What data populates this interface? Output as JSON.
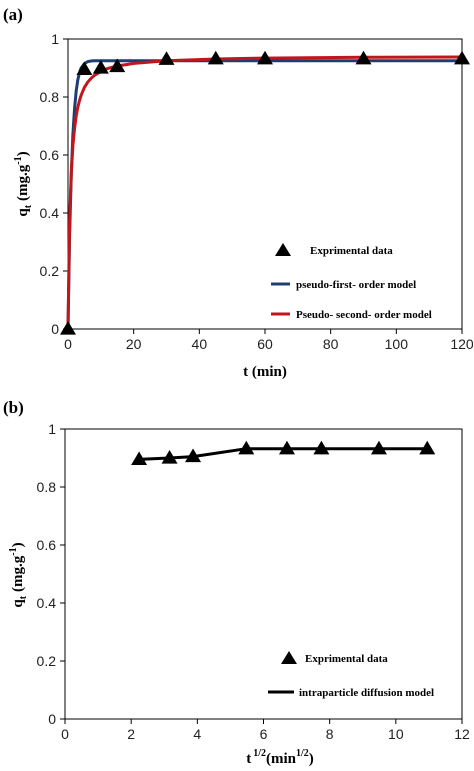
{
  "chart_data": [
    {
      "type": "scatter",
      "panel_label": "(a)",
      "xlabel": "t (min)",
      "ylabel_main": "q",
      "ylabel_sub": "t",
      "ylabel_unit": "(mg.g",
      "ylabel_sup": "-1",
      "ylabel_close": ")",
      "xlim": [
        0,
        120
      ],
      "ylim": [
        0,
        1
      ],
      "x_ticks": [
        "0",
        "20",
        "40",
        "60",
        "80",
        "100",
        "120"
      ],
      "y_ticks": [
        "0",
        "0.2",
        "0.4",
        "0.6",
        "0.8",
        "1"
      ],
      "grid": false,
      "legend_placement": "bottom-right",
      "series": [
        {
          "name": "Exprimental data",
          "kind": "markers",
          "marker": "triangle",
          "color": "#000000",
          "x": [
            0,
            5,
            10,
            15,
            30,
            45,
            60,
            90,
            120
          ],
          "y": [
            0,
            0.895,
            0.9,
            0.905,
            0.93,
            0.932,
            0.932,
            0.932,
            0.932
          ]
        },
        {
          "name": "pseudo-first- order model",
          "kind": "line",
          "color": "#1f3d73",
          "x": [
            0,
            0.5,
            1,
            1.5,
            2,
            2.5,
            3,
            3.5,
            4,
            5,
            6,
            7,
            8,
            10,
            12,
            15,
            20,
            30,
            45,
            60,
            90,
            120
          ],
          "y": [
            0,
            0.323,
            0.534,
            0.672,
            0.762,
            0.821,
            0.859,
            0.884,
            0.9,
            0.915,
            0.922,
            0.924,
            0.925,
            0.925,
            0.925,
            0.925,
            0.925,
            0.925,
            0.925,
            0.925,
            0.925,
            0.925
          ]
        },
        {
          "name": "Pseudo- second- order model",
          "kind": "line",
          "color": "#c0161c",
          "x": [
            0,
            0.5,
            1,
            1.5,
            2,
            2.5,
            3,
            3.5,
            4,
            5,
            6,
            7,
            8,
            10,
            12,
            15,
            20,
            30,
            45,
            60,
            90,
            120
          ],
          "y": [
            0,
            0.37,
            0.54,
            0.633,
            0.693,
            0.735,
            0.765,
            0.788,
            0.806,
            0.833,
            0.851,
            0.864,
            0.874,
            0.888,
            0.898,
            0.907,
            0.916,
            0.925,
            0.931,
            0.934,
            0.937,
            0.938
          ]
        }
      ]
    },
    {
      "type": "scatter",
      "panel_label": "(b)",
      "xlabel_main": "t",
      "xlabel_sup": "1/2",
      "xlabel_unit": "(min",
      "xlabel_unit_sup": "1/2",
      "xlabel_close": ")",
      "ylabel_main": "q",
      "ylabel_sub": "t",
      "ylabel_unit": "(mg.g",
      "ylabel_sup": "-1",
      "ylabel_close": ")",
      "xlim": [
        0,
        12
      ],
      "ylim": [
        0,
        1
      ],
      "x_ticks": [
        "0",
        "2",
        "4",
        "6",
        "8",
        "10",
        "12"
      ],
      "y_ticks": [
        "0",
        "0.2",
        "0.4",
        "0.6",
        "0.8",
        "1"
      ],
      "grid": false,
      "legend_placement": "bottom-right",
      "series": [
        {
          "name": "Exprimental data",
          "kind": "markers",
          "marker": "triangle",
          "color": "#000000",
          "x": [
            2.24,
            3.16,
            3.87,
            5.48,
            6.71,
            7.75,
            9.49,
            10.95
          ],
          "y": [
            0.895,
            0.9,
            0.905,
            0.932,
            0.932,
            0.932,
            0.932,
            0.932
          ]
        },
        {
          "name": "intraparticle diffusion model",
          "kind": "line",
          "color": "#000000",
          "x": [
            2.24,
            3.16,
            3.87,
            5.48,
            6.71,
            7.75,
            9.49,
            10.95
          ],
          "y": [
            0.895,
            0.9,
            0.905,
            0.932,
            0.932,
            0.932,
            0.932,
            0.932
          ]
        }
      ]
    }
  ]
}
